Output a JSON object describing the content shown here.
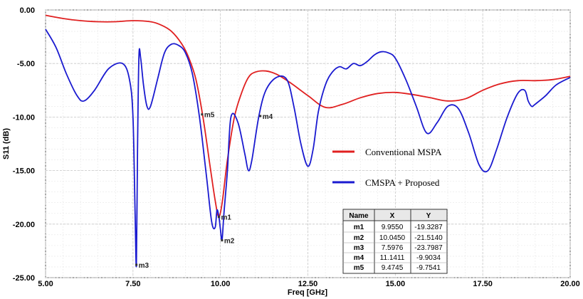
{
  "chart_data": {
    "type": "line",
    "xlabel": "Freq [GHz]",
    "ylabel": "S11 (dB)",
    "xlim": [
      5.0,
      20.0
    ],
    "ylim": [
      -25.0,
      0.0
    ],
    "x_ticks": [
      "5.00",
      "7.50",
      "10.00",
      "12.50",
      "15.00",
      "17.50",
      "20.00"
    ],
    "y_ticks": [
      "0.00",
      "-5.00",
      "-10.00",
      "-15.00",
      "-20.00",
      "-25.00"
    ],
    "grid": true,
    "legend_position": "center-right",
    "series": [
      {
        "name": "Conventional MSPA",
        "color": "#e02020",
        "x": [
          5.0,
          5.5,
          6.0,
          6.5,
          7.0,
          7.5,
          8.0,
          8.3,
          8.6,
          8.9,
          9.1,
          9.3,
          9.5,
          9.7,
          9.85,
          9.95,
          10.05,
          10.2,
          10.4,
          10.6,
          10.8,
          11.0,
          11.3,
          11.6,
          12.0,
          12.5,
          13.0,
          13.5,
          14.0,
          14.5,
          15.0,
          15.5,
          16.0,
          16.5,
          17.0,
          17.5,
          18.0,
          18.5,
          19.0,
          19.5,
          20.0
        ],
        "values": [
          -0.5,
          -0.8,
          -1.0,
          -1.1,
          -1.1,
          -1.0,
          -1.1,
          -1.4,
          -2.0,
          -3.2,
          -4.5,
          -6.5,
          -10.0,
          -14.5,
          -17.8,
          -19.3,
          -18.0,
          -14.0,
          -10.0,
          -7.8,
          -6.3,
          -5.8,
          -5.7,
          -6.0,
          -6.8,
          -8.0,
          -9.1,
          -8.8,
          -8.2,
          -7.8,
          -7.7,
          -7.9,
          -8.2,
          -8.5,
          -8.3,
          -7.5,
          -6.9,
          -6.6,
          -6.6,
          -6.5,
          -6.2
        ]
      },
      {
        "name": "CMSPA + Proposed",
        "color": "#1a1ad0",
        "x": [
          5.0,
          5.3,
          5.6,
          5.9,
          6.1,
          6.4,
          6.8,
          7.2,
          7.4,
          7.5,
          7.56,
          7.5976,
          7.63,
          7.67,
          7.72,
          7.8,
          7.9,
          8.0,
          8.2,
          8.4,
          8.6,
          8.8,
          9.0,
          9.2,
          9.4,
          9.6,
          9.75,
          9.85,
          9.9,
          9.955,
          10.0,
          10.045,
          10.1,
          10.2,
          10.3,
          10.5,
          10.7,
          10.8,
          10.9,
          11.1,
          11.3,
          11.6,
          11.9,
          12.1,
          12.3,
          12.5,
          12.65,
          12.8,
          13.0,
          13.2,
          13.4,
          13.6,
          13.8,
          14.0,
          14.2,
          14.4,
          14.6,
          14.8,
          15.0,
          15.3,
          15.6,
          15.9,
          16.2,
          16.5,
          16.8,
          17.1,
          17.4,
          17.65,
          17.9,
          18.2,
          18.5,
          18.7,
          18.8,
          18.9,
          19.0,
          19.3,
          19.6,
          20.0
        ],
        "values": [
          -1.8,
          -3.5,
          -6.0,
          -8.0,
          -8.5,
          -7.5,
          -5.5,
          -5.0,
          -6.5,
          -10.0,
          -19.0,
          -23.8,
          -13.0,
          -4.3,
          -4.5,
          -7.0,
          -9.0,
          -9.0,
          -6.5,
          -4.0,
          -3.2,
          -3.3,
          -4.0,
          -6.0,
          -10.0,
          -15.5,
          -19.8,
          -20.3,
          -18.7,
          -19.3,
          -20.5,
          -21.5,
          -19.0,
          -15.0,
          -10.0,
          -10.5,
          -13.5,
          -15.0,
          -14.0,
          -9.9,
          -7.5,
          -6.3,
          -6.5,
          -9.0,
          -12.5,
          -14.6,
          -13.0,
          -9.5,
          -7.0,
          -5.8,
          -5.3,
          -5.5,
          -5.0,
          -5.2,
          -4.8,
          -4.2,
          -3.9,
          -4.0,
          -4.5,
          -6.5,
          -9.0,
          -11.5,
          -10.5,
          -9.0,
          -9.2,
          -11.5,
          -14.5,
          -15.0,
          -13.0,
          -10.0,
          -7.8,
          -7.5,
          -8.5,
          -9.0,
          -8.8,
          -8.0,
          -7.0,
          -6.3
        ]
      }
    ],
    "markers": [
      {
        "name": "m1",
        "x": 9.955,
        "y": -19.3287
      },
      {
        "name": "m2",
        "x": 10.045,
        "y": -21.514
      },
      {
        "name": "m3",
        "x": 7.5976,
        "y": -23.7987
      },
      {
        "name": "m4",
        "x": 11.1411,
        "y": -9.9034
      },
      {
        "name": "m5",
        "x": 9.4745,
        "y": -9.7541
      }
    ],
    "marker_table": {
      "headers": [
        "Name",
        "X",
        "Y"
      ],
      "rows": [
        [
          "m1",
          "9.9550",
          "-19.3287"
        ],
        [
          "m2",
          "10.0450",
          "-21.5140"
        ],
        [
          "m3",
          "7.5976",
          "-23.7987"
        ],
        [
          "m4",
          "11.1411",
          "-9.9034"
        ],
        [
          "m5",
          "9.4745",
          "-9.7541"
        ]
      ]
    }
  }
}
